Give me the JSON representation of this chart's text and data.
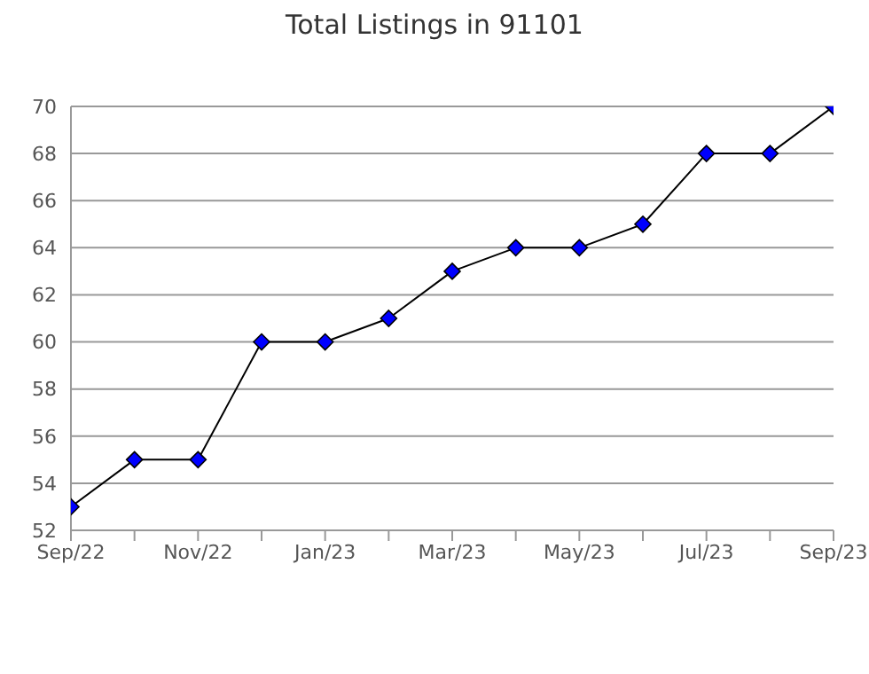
{
  "chart_data": {
    "type": "line",
    "title": "Total Listings in 91101",
    "categories": [
      "Sep/22",
      null,
      "Nov/22",
      null,
      "Jan/23",
      null,
      "Mar/23",
      null,
      "May/23",
      null,
      "Jul/23",
      null,
      "Sep/23"
    ],
    "series": [
      {
        "color": "#000000",
        "colors": [
          "#0000ff",
          "#0000ff",
          "#0000ff",
          "#0000ff",
          "#0000ff",
          "#0000ff",
          "#0000ff",
          "#0000ff",
          "#0000ff",
          "#0000ff",
          "#0000ff",
          "#0000ff",
          "#0000ff"
        ],
        "values": [
          53,
          55,
          55,
          60,
          60,
          61,
          63,
          64,
          64,
          65,
          68,
          68,
          70
        ]
      }
    ],
    "ylim": [
      52,
      70
    ],
    "yticks": [
      52,
      54,
      56,
      58,
      60,
      62,
      64,
      66,
      68,
      70
    ],
    "grid": "y",
    "marker": "diamond",
    "line_style": "solid",
    "legend": false
  }
}
